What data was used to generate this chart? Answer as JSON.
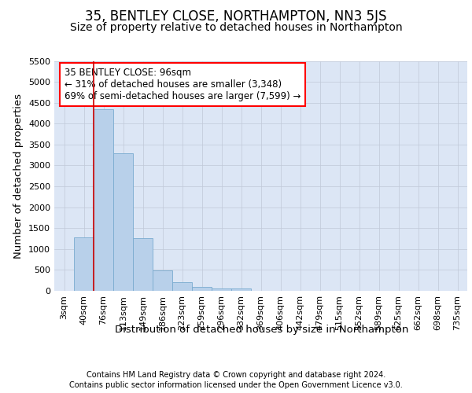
{
  "title": "35, BENTLEY CLOSE, NORTHAMPTON, NN3 5JS",
  "subtitle": "Size of property relative to detached houses in Northampton",
  "xlabel": "Distribution of detached houses by size in Northampton",
  "ylabel": "Number of detached properties",
  "footer_line1": "Contains HM Land Registry data © Crown copyright and database right 2024.",
  "footer_line2": "Contains public sector information licensed under the Open Government Licence v3.0.",
  "annotation_line1": "35 BENTLEY CLOSE: 96sqm",
  "annotation_line2": "← 31% of detached houses are smaller (3,348)",
  "annotation_line3": "69% of semi-detached houses are larger (7,599) →",
  "bar_labels": [
    "3sqm",
    "40sqm",
    "76sqm",
    "113sqm",
    "149sqm",
    "186sqm",
    "223sqm",
    "259sqm",
    "296sqm",
    "332sqm",
    "369sqm",
    "406sqm",
    "442sqm",
    "479sqm",
    "515sqm",
    "552sqm",
    "589sqm",
    "625sqm",
    "662sqm",
    "698sqm",
    "735sqm"
  ],
  "bar_values": [
    0,
    1270,
    4350,
    3300,
    1260,
    490,
    215,
    90,
    65,
    60,
    0,
    0,
    0,
    0,
    0,
    0,
    0,
    0,
    0,
    0,
    0
  ],
  "bar_color": "#b8d0ea",
  "bar_edge_color": "#7aabcf",
  "vline_x": 1.5,
  "vline_color": "#cc0000",
  "ylim": [
    0,
    5500
  ],
  "yticks": [
    0,
    500,
    1000,
    1500,
    2000,
    2500,
    3000,
    3500,
    4000,
    4500,
    5000,
    5500
  ],
  "bg_color": "#dce6f5",
  "grid_color": "#c0c8d8",
  "title_fontsize": 12,
  "subtitle_fontsize": 10,
  "axis_label_fontsize": 9.5,
  "tick_fontsize": 8,
  "footer_fontsize": 7,
  "annotation_fontsize": 8.5
}
